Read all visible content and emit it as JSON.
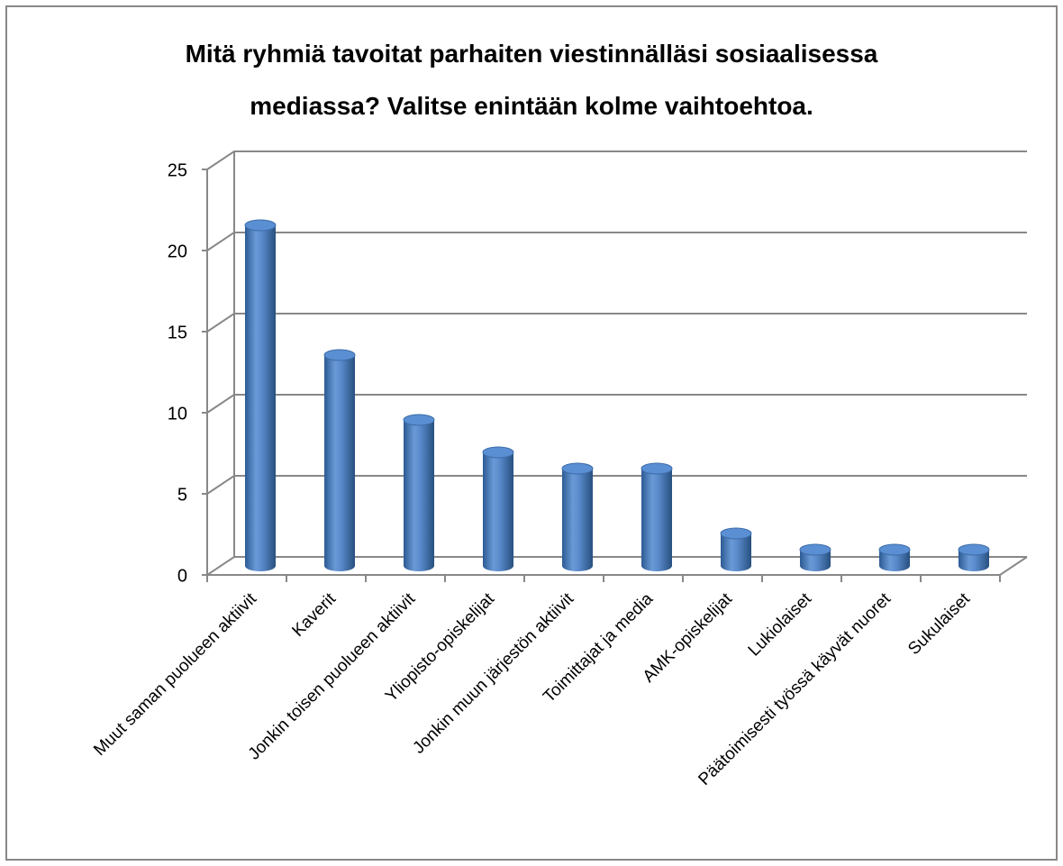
{
  "chart_data": {
    "type": "bar",
    "title": "Mitä ryhmiä tavoitat parhaiten viestinnälläsi sosiaalisessa mediassa? Valitse enintään kolme vaihtoehtoa.",
    "categories": [
      "Muut saman puolueen aktiivit",
      "Kaverit",
      "Jonkin toisen puolueen aktiivit",
      "Yliopisto-opiskelijat",
      "Jonkin muun järjestön aktiivit",
      "Toimittajat ja media",
      "AMK-opiskelijat",
      "Lukiolaiset",
      "Päätoimisesti työssä käyvät nuoret",
      "Sukulaiset"
    ],
    "values": [
      21,
      13,
      9,
      7,
      6,
      6,
      2,
      1,
      1,
      1
    ],
    "color": "#4a7ebb",
    "ylim": [
      0,
      25
    ],
    "yticks": [
      0,
      5,
      10,
      15,
      20,
      25
    ],
    "grid": true
  }
}
